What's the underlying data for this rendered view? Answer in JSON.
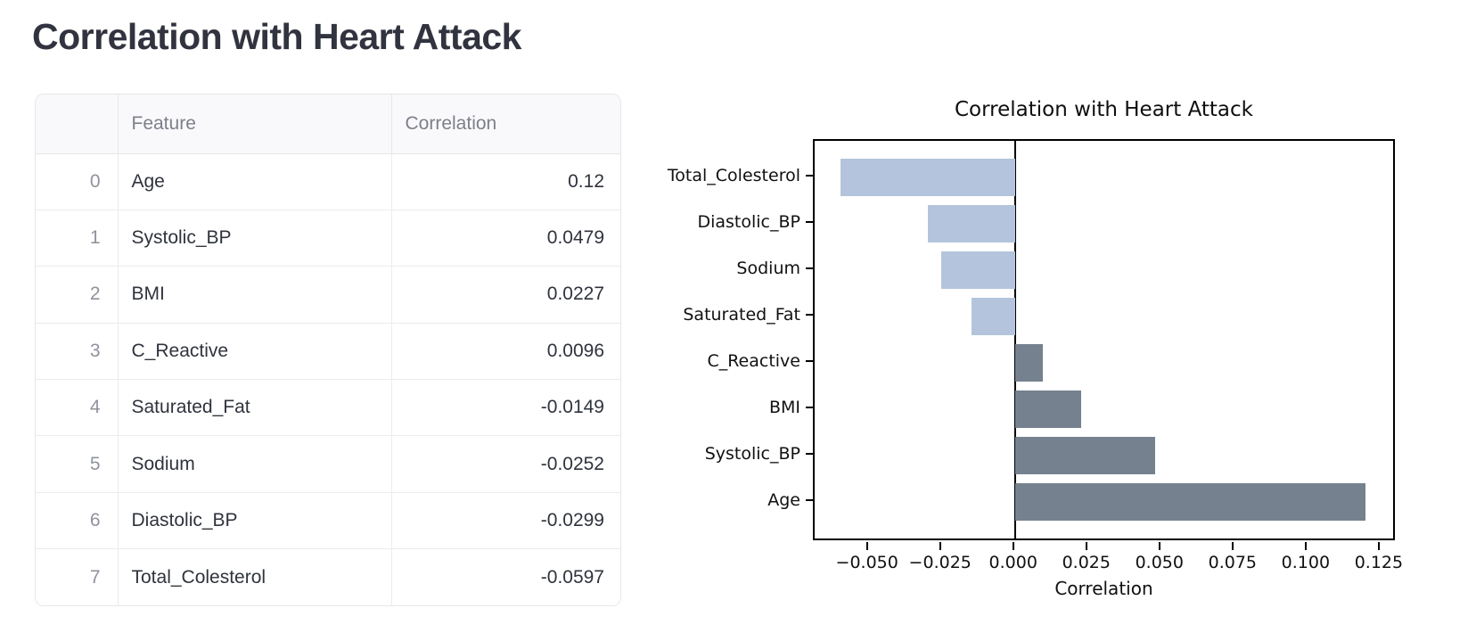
{
  "page": {
    "title": "Correlation with Heart Attack"
  },
  "table": {
    "headers": [
      "",
      "Feature",
      "Correlation"
    ],
    "rows": [
      {
        "index": "0",
        "feature": "Age",
        "correlation": "0.12"
      },
      {
        "index": "1",
        "feature": "Systolic_BP",
        "correlation": "0.0479"
      },
      {
        "index": "2",
        "feature": "BMI",
        "correlation": "0.0227"
      },
      {
        "index": "3",
        "feature": "C_Reactive",
        "correlation": "0.0096"
      },
      {
        "index": "4",
        "feature": "Saturated_Fat",
        "correlation": "-0.0149"
      },
      {
        "index": "5",
        "feature": "Sodium",
        "correlation": "-0.0252"
      },
      {
        "index": "6",
        "feature": "Diastolic_BP",
        "correlation": "-0.0299"
      },
      {
        "index": "7",
        "feature": "Total_Colesterol",
        "correlation": "-0.0597"
      }
    ]
  },
  "chart_data": {
    "type": "bar",
    "orientation": "horizontal",
    "title": "Correlation with Heart Attack",
    "xlabel": "Correlation",
    "ylabel": "",
    "categories": [
      "Total_Colesterol",
      "Diastolic_BP",
      "Sodium",
      "Saturated_Fat",
      "C_Reactive",
      "BMI",
      "Systolic_BP",
      "Age"
    ],
    "values": [
      -0.0597,
      -0.0299,
      -0.0252,
      -0.0149,
      0.0096,
      0.0227,
      0.0479,
      0.12
    ],
    "xticks": [
      -0.05,
      -0.025,
      0.0,
      0.025,
      0.05,
      0.075,
      0.1,
      0.125
    ],
    "xtick_labels": [
      "−0.050",
      "−0.025",
      "0.000",
      "0.025",
      "0.050",
      "0.075",
      "0.100",
      "0.125"
    ],
    "xlim": [
      -0.0685,
      0.1293
    ],
    "ylim_units": [
      -0.79,
      7.79
    ],
    "bar_height_fraction": 0.8,
    "grid": false,
    "legend": null,
    "colors": {
      "negative_bar": "#b4c4dc",
      "positive_bar": "#75818e",
      "axis": "#000000"
    }
  }
}
